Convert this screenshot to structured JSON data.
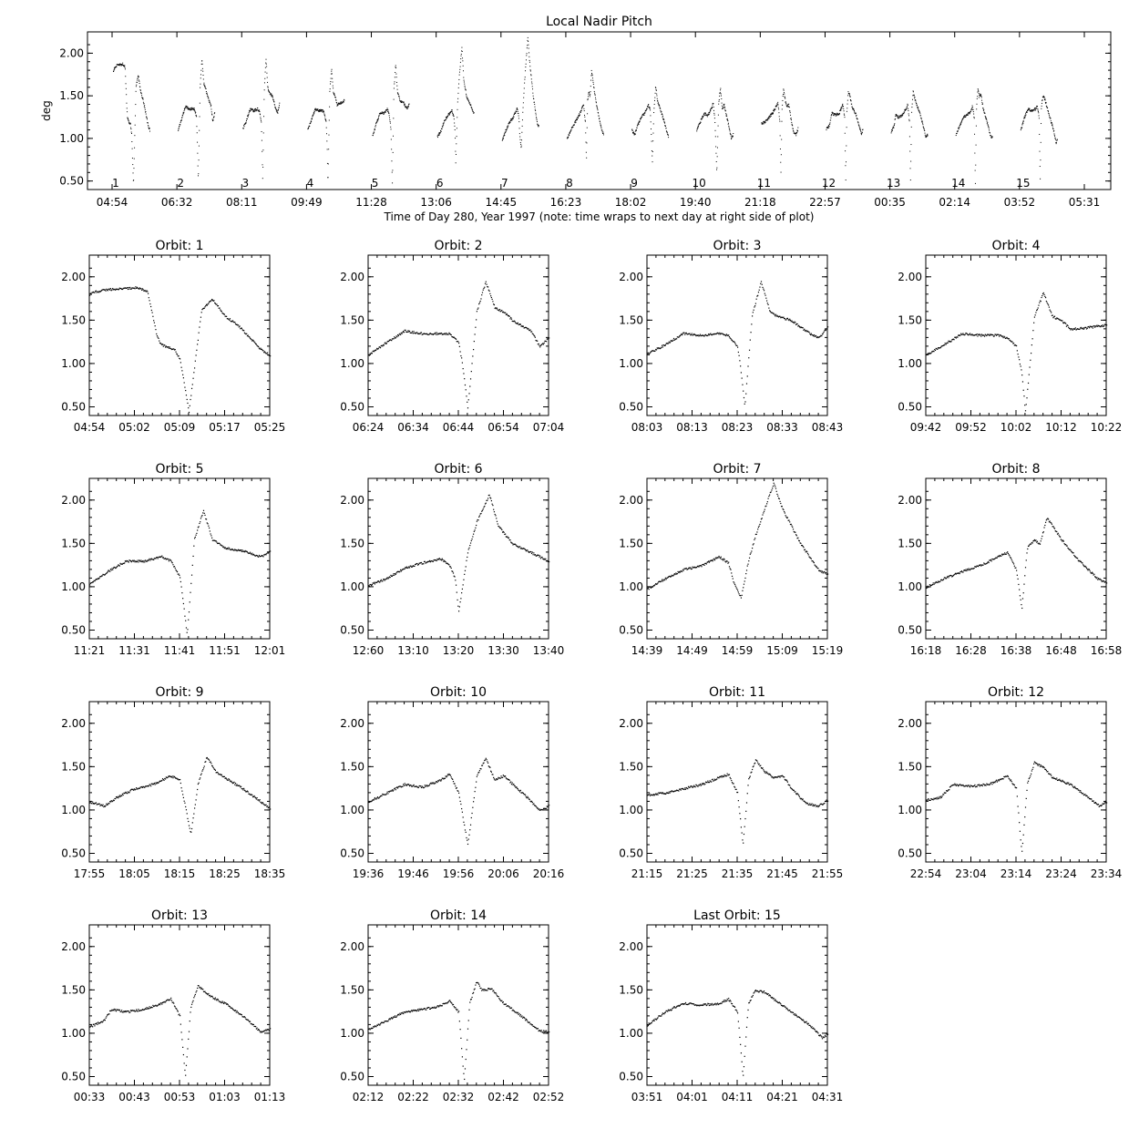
{
  "chart_data": [
    {
      "type": "scatter",
      "title": "Local Nadir Pitch",
      "xlabel": "Time of Day 280, Year 1997 (note: time wraps to next day at right side of plot)",
      "ylabel": "deg",
      "ylim": [
        0.4,
        2.25
      ],
      "y_ticks": [
        "0.50",
        "1.00",
        "1.50",
        "2.00"
      ],
      "x_ticks": [
        "04:54",
        "06:32",
        "08:11",
        "09:49",
        "11:28",
        "13:06",
        "14:45",
        "16:23",
        "18:02",
        "19:40",
        "21:18",
        "22:57",
        "00:35",
        "02:14",
        "03:52",
        "05:31"
      ],
      "orbit_numbers": [
        "1",
        "2",
        "3",
        "4",
        "5",
        "6",
        "7",
        "8",
        "9",
        "10",
        "11",
        "12",
        "13",
        "14",
        "15"
      ],
      "grid": false,
      "marker": "dot",
      "color": "#000000"
    },
    {
      "type": "scatter",
      "title": "Orbit: 1",
      "ylim": [
        0.4,
        2.25
      ],
      "y_ticks": [
        "0.50",
        "1.00",
        "1.50",
        "2.00"
      ],
      "x_ticks": [
        "04:54",
        "05:02",
        "05:09",
        "05:17",
        "05:25"
      ],
      "x": [
        0,
        0.03,
        0.1,
        0.2,
        0.26,
        0.32,
        0.37,
        0.39,
        0.42,
        0.47,
        0.5,
        0.52,
        0.55,
        0.62,
        0.68,
        0.75,
        0.82,
        0.88,
        0.94,
        1.0
      ],
      "y": [
        1.8,
        1.83,
        1.86,
        1.87,
        1.88,
        1.84,
        1.35,
        1.23,
        1.2,
        1.17,
        1.05,
        0.82,
        0.45,
        1.62,
        1.75,
        1.55,
        1.45,
        1.32,
        1.18,
        1.1
      ]
    },
    {
      "type": "scatter",
      "title": "Orbit: 2",
      "ylim": [
        0.4,
        2.25
      ],
      "y_ticks": [
        "0.50",
        "1.00",
        "1.50",
        "2.00"
      ],
      "x_ticks": [
        "06:24",
        "06:34",
        "06:44",
        "06:54",
        "07:04"
      ],
      "x": [
        0,
        0.08,
        0.2,
        0.3,
        0.4,
        0.45,
        0.5,
        0.52,
        0.55,
        0.6,
        0.65,
        0.7,
        0.75,
        0.8,
        0.9,
        0.95,
        1.0
      ],
      "y": [
        1.1,
        1.22,
        1.38,
        1.35,
        1.35,
        1.35,
        1.25,
        1.0,
        0.5,
        1.6,
        1.95,
        1.65,
        1.6,
        1.5,
        1.38,
        1.2,
        1.3
      ]
    },
    {
      "type": "scatter",
      "title": "Orbit: 3",
      "ylim": [
        0.4,
        2.25
      ],
      "y_ticks": [
        "0.50",
        "1.00",
        "1.50",
        "2.00"
      ],
      "x_ticks": [
        "08:03",
        "08:13",
        "08:23",
        "08:33",
        "08:43"
      ],
      "x": [
        0,
        0.08,
        0.2,
        0.3,
        0.4,
        0.45,
        0.5,
        0.52,
        0.54,
        0.58,
        0.63,
        0.68,
        0.72,
        0.8,
        0.9,
        0.95,
        1.0
      ],
      "y": [
        1.12,
        1.2,
        1.35,
        1.33,
        1.35,
        1.33,
        1.2,
        0.9,
        0.5,
        1.55,
        1.95,
        1.6,
        1.55,
        1.5,
        1.35,
        1.3,
        1.42
      ]
    },
    {
      "type": "scatter",
      "title": "Orbit: 4",
      "ylim": [
        0.4,
        2.25
      ],
      "y_ticks": [
        "0.50",
        "1.00",
        "1.50",
        "2.00"
      ],
      "x_ticks": [
        "09:42",
        "09:52",
        "10:02",
        "10:12",
        "10:22"
      ],
      "x": [
        0,
        0.08,
        0.2,
        0.3,
        0.4,
        0.45,
        0.5,
        0.53,
        0.55,
        0.6,
        0.65,
        0.7,
        0.75,
        0.8,
        0.9,
        1.0
      ],
      "y": [
        1.1,
        1.2,
        1.35,
        1.33,
        1.33,
        1.3,
        1.2,
        0.9,
        0.45,
        1.55,
        1.82,
        1.55,
        1.5,
        1.4,
        1.42,
        1.45
      ]
    },
    {
      "type": "scatter",
      "title": "Orbit: 5",
      "ylim": [
        0.4,
        2.25
      ],
      "y_ticks": [
        "0.50",
        "1.00",
        "1.50",
        "2.00"
      ],
      "x_ticks": [
        "11:21",
        "11:31",
        "11:41",
        "11:51",
        "12:01"
      ],
      "x": [
        0,
        0.1,
        0.2,
        0.3,
        0.4,
        0.45,
        0.5,
        0.52,
        0.54,
        0.58,
        0.63,
        0.68,
        0.75,
        0.85,
        0.95,
        1.0
      ],
      "y": [
        1.03,
        1.18,
        1.3,
        1.3,
        1.35,
        1.3,
        1.12,
        0.8,
        0.45,
        1.55,
        1.88,
        1.55,
        1.45,
        1.42,
        1.35,
        1.42
      ]
    },
    {
      "type": "scatter",
      "title": "Orbit: 6",
      "ylim": [
        0.4,
        2.25
      ],
      "y_ticks": [
        "0.50",
        "1.00",
        "1.50",
        "2.00"
      ],
      "x_ticks": [
        "12:60",
        "13:10",
        "13:20",
        "13:30",
        "13:40"
      ],
      "x": [
        0,
        0.1,
        0.2,
        0.3,
        0.4,
        0.45,
        0.48,
        0.5,
        0.55,
        0.6,
        0.67,
        0.72,
        0.8,
        0.9,
        1.0
      ],
      "y": [
        1.02,
        1.1,
        1.22,
        1.28,
        1.33,
        1.25,
        1.1,
        0.72,
        1.4,
        1.75,
        2.07,
        1.7,
        1.5,
        1.4,
        1.3
      ]
    },
    {
      "type": "scatter",
      "title": "Orbit: 7",
      "ylim": [
        0.4,
        2.25
      ],
      "y_ticks": [
        "0.50",
        "1.00",
        "1.50",
        "2.00"
      ],
      "x_ticks": [
        "14:39",
        "14:49",
        "14:59",
        "15:09",
        "15:19"
      ],
      "x": [
        0,
        0.1,
        0.2,
        0.3,
        0.4,
        0.45,
        0.48,
        0.52,
        0.56,
        0.6,
        0.65,
        0.7,
        0.75,
        0.85,
        0.95,
        1.0
      ],
      "y": [
        0.98,
        1.1,
        1.2,
        1.25,
        1.35,
        1.28,
        1.05,
        0.88,
        1.3,
        1.6,
        1.9,
        2.2,
        1.9,
        1.5,
        1.2,
        1.15
      ]
    },
    {
      "type": "scatter",
      "title": "Orbit: 8",
      "ylim": [
        0.4,
        2.25
      ],
      "y_ticks": [
        "0.50",
        "1.00",
        "1.50",
        "2.00"
      ],
      "x_ticks": [
        "16:18",
        "16:28",
        "16:38",
        "16:48",
        "16:58"
      ],
      "x": [
        0,
        0.1,
        0.2,
        0.3,
        0.4,
        0.45,
        0.5,
        0.53,
        0.56,
        0.6,
        0.63,
        0.67,
        0.75,
        0.85,
        0.95,
        1.0
      ],
      "y": [
        1.0,
        1.1,
        1.18,
        1.25,
        1.35,
        1.4,
        1.2,
        0.75,
        1.45,
        1.55,
        1.5,
        1.8,
        1.55,
        1.3,
        1.1,
        1.05
      ]
    },
    {
      "type": "scatter",
      "title": "Orbit: 9",
      "ylim": [
        0.4,
        2.25
      ],
      "y_ticks": [
        "0.50",
        "1.00",
        "1.50",
        "2.00"
      ],
      "x_ticks": [
        "17:55",
        "18:05",
        "18:15",
        "18:25",
        "18:35"
      ],
      "x": [
        0,
        0.08,
        0.15,
        0.25,
        0.35,
        0.45,
        0.5,
        0.53,
        0.56,
        0.6,
        0.65,
        0.7,
        0.75,
        0.85,
        0.95,
        1.0
      ],
      "y": [
        1.1,
        1.05,
        1.15,
        1.25,
        1.3,
        1.4,
        1.35,
        1.05,
        0.72,
        1.3,
        1.62,
        1.45,
        1.38,
        1.25,
        1.1,
        1.02
      ]
    },
    {
      "type": "scatter",
      "title": "Orbit: 10",
      "ylim": [
        0.4,
        2.25
      ],
      "y_ticks": [
        "0.50",
        "1.00",
        "1.50",
        "2.00"
      ],
      "x_ticks": [
        "19:36",
        "19:46",
        "19:56",
        "20:06",
        "20:16"
      ],
      "x": [
        0,
        0.1,
        0.2,
        0.3,
        0.4,
        0.45,
        0.5,
        0.55,
        0.6,
        0.65,
        0.7,
        0.75,
        0.8,
        0.88,
        0.95,
        1.0
      ],
      "y": [
        1.1,
        1.2,
        1.3,
        1.27,
        1.35,
        1.42,
        1.2,
        0.6,
        1.4,
        1.6,
        1.35,
        1.4,
        1.3,
        1.15,
        1.0,
        1.05
      ]
    },
    {
      "type": "scatter",
      "title": "Orbit: 11",
      "ylim": [
        0.4,
        2.25
      ],
      "y_ticks": [
        "0.50",
        "1.00",
        "1.50",
        "2.00"
      ],
      "x_ticks": [
        "21:15",
        "21:25",
        "21:35",
        "21:45",
        "21:55"
      ],
      "x": [
        0,
        0.1,
        0.2,
        0.3,
        0.4,
        0.45,
        0.5,
        0.53,
        0.56,
        0.6,
        0.65,
        0.7,
        0.75,
        0.8,
        0.88,
        0.95,
        1.0
      ],
      "y": [
        1.18,
        1.2,
        1.25,
        1.3,
        1.38,
        1.42,
        1.2,
        0.6,
        1.35,
        1.58,
        1.45,
        1.38,
        1.4,
        1.25,
        1.08,
        1.05,
        1.12
      ]
    },
    {
      "type": "scatter",
      "title": "Orbit: 12",
      "ylim": [
        0.4,
        2.25
      ],
      "y_ticks": [
        "0.50",
        "1.00",
        "1.50",
        "2.00"
      ],
      "x_ticks": [
        "22:54",
        "23:04",
        "23:14",
        "23:24",
        "23:34"
      ],
      "x": [
        0,
        0.08,
        0.15,
        0.25,
        0.35,
        0.45,
        0.5,
        0.53,
        0.56,
        0.6,
        0.65,
        0.7,
        0.8,
        0.9,
        0.96,
        1.0
      ],
      "y": [
        1.12,
        1.15,
        1.3,
        1.28,
        1.3,
        1.4,
        1.25,
        0.5,
        1.3,
        1.55,
        1.5,
        1.38,
        1.3,
        1.15,
        1.05,
        1.1
      ]
    },
    {
      "type": "scatter",
      "title": "Orbit: 13",
      "ylim": [
        0.4,
        2.25
      ],
      "y_ticks": [
        "0.50",
        "1.00",
        "1.50",
        "2.00"
      ],
      "x_ticks": [
        "00:33",
        "00:43",
        "00:53",
        "01:03",
        "01:13"
      ],
      "x": [
        0,
        0.08,
        0.12,
        0.2,
        0.3,
        0.4,
        0.45,
        0.5,
        0.53,
        0.56,
        0.6,
        0.63,
        0.68,
        0.75,
        0.85,
        0.95,
        1.0
      ],
      "y": [
        1.08,
        1.15,
        1.28,
        1.25,
        1.28,
        1.35,
        1.4,
        1.2,
        0.5,
        1.3,
        1.55,
        1.5,
        1.42,
        1.35,
        1.2,
        1.02,
        1.05
      ]
    },
    {
      "type": "scatter",
      "title": "Orbit: 14",
      "ylim": [
        0.4,
        2.25
      ],
      "y_ticks": [
        "0.50",
        "1.00",
        "1.50",
        "2.00"
      ],
      "x_ticks": [
        "02:12",
        "02:22",
        "02:32",
        "02:42",
        "02:52"
      ],
      "x": [
        0,
        0.1,
        0.2,
        0.3,
        0.4,
        0.45,
        0.5,
        0.53,
        0.56,
        0.6,
        0.63,
        0.68,
        0.75,
        0.85,
        0.95,
        1.0
      ],
      "y": [
        1.05,
        1.15,
        1.25,
        1.28,
        1.32,
        1.38,
        1.25,
        0.45,
        1.35,
        1.6,
        1.5,
        1.52,
        1.35,
        1.2,
        1.03,
        1.02
      ]
    },
    {
      "type": "scatter",
      "title": "Last Orbit: 15",
      "ylim": [
        0.4,
        2.25
      ],
      "y_ticks": [
        "0.50",
        "1.00",
        "1.50",
        "2.00"
      ],
      "x_ticks": [
        "03:51",
        "04:01",
        "04:11",
        "04:21",
        "04:31"
      ],
      "x": [
        0,
        0.1,
        0.2,
        0.3,
        0.4,
        0.45,
        0.5,
        0.53,
        0.56,
        0.6,
        0.65,
        0.7,
        0.8,
        0.9,
        0.97,
        1.0
      ],
      "y": [
        1.1,
        1.25,
        1.35,
        1.33,
        1.35,
        1.4,
        1.25,
        0.5,
        1.35,
        1.5,
        1.48,
        1.4,
        1.25,
        1.1,
        0.95,
        1.0
      ]
    }
  ]
}
